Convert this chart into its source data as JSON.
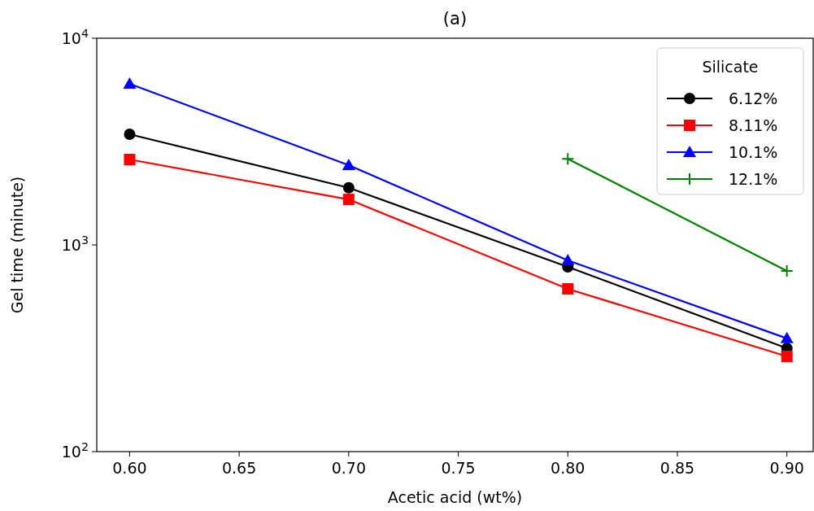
{
  "chart_data": {
    "type": "line",
    "title": "(a)",
    "xlabel": "Acetic acid (wt%)",
    "ylabel": "Gel time (minute)",
    "legend_title": "Silicate",
    "legend": "top right",
    "log": "y",
    "grid": false,
    "xlim": [
      0.585,
      0.912
    ],
    "xticks": [
      {
        "value": 0.6,
        "label": "0.60"
      },
      {
        "value": 0.65,
        "label": "0.65"
      },
      {
        "value": 0.7,
        "label": "0.70"
      },
      {
        "value": 0.75,
        "label": "0.75"
      },
      {
        "value": 0.8,
        "label": "0.80"
      },
      {
        "value": 0.85,
        "label": "0.85"
      },
      {
        "value": 0.9,
        "label": "0.90"
      }
    ],
    "ylim": [
      100,
      10000
    ],
    "yticks": [
      {
        "value": 100,
        "label": "10$^{2}$"
      },
      {
        "value": 1000,
        "label": "10$^{3}$"
      },
      {
        "value": 10000,
        "label": "10$^{4}$"
      }
    ],
    "x": [
      0.6,
      0.7,
      0.8,
      0.9
    ],
    "series": [
      {
        "name": "6.12%",
        "color": "#000000",
        "marker": "circle",
        "values": [
          3430,
          1890,
          783,
          316
        ]
      },
      {
        "name": "8.11%",
        "color": "#ff0000",
        "marker": "square",
        "values": [
          2590,
          1660,
          613,
          289
        ]
      },
      {
        "name": "10.1%",
        "color": "#0000ff",
        "marker": "triangle",
        "values": [
          6020,
          2430,
          842,
          353
        ]
      },
      {
        "name": "12.1%",
        "color": "#008000",
        "marker": "cross",
        "values": [
          null,
          null,
          2610,
          748
        ]
      }
    ]
  }
}
